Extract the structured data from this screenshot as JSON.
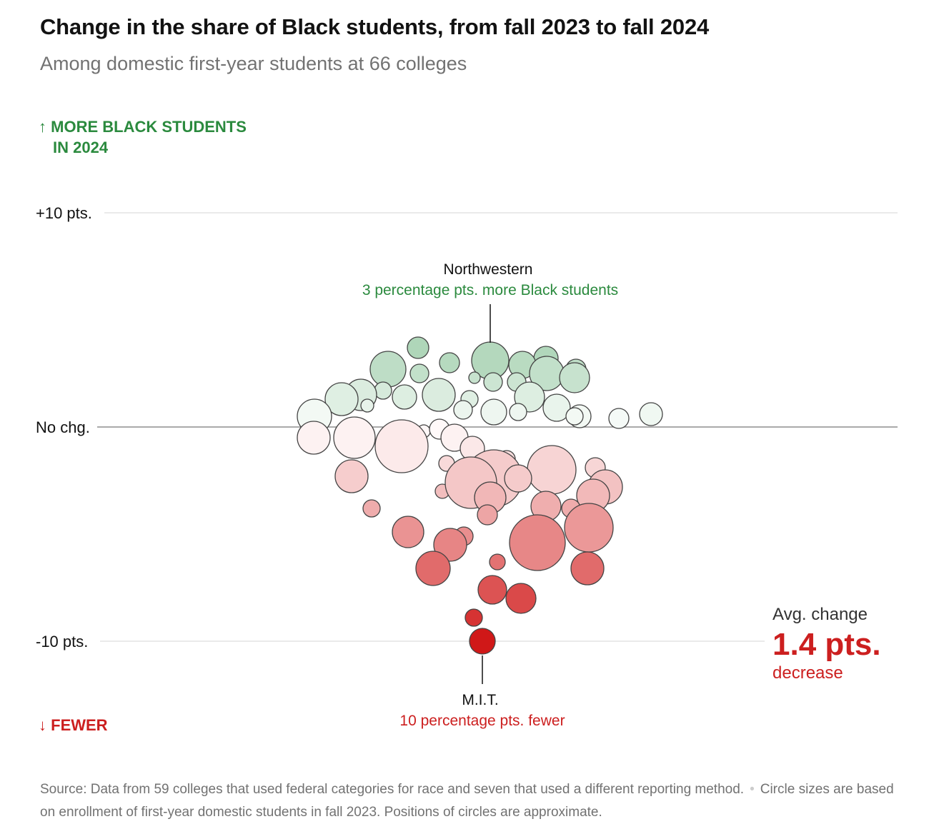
{
  "title": "Change in the share of Black students, from fall 2023 to fall 2024",
  "subtitle": "Among domestic first-year students at 66 colleges",
  "up_arrow": "↑",
  "up_label_line1": "MORE BLACK STUDENTS",
  "up_label_line2": "IN 2024",
  "down_arrow": "↓",
  "down_label": "FEWER",
  "avg": {
    "key": "Avg. change",
    "value": "1.4 pts.",
    "direction": "decrease"
  },
  "source": "Source: Data from 59 colleges that used federal categories for race and seven that used a different reporting method.",
  "note": "Circle sizes are based on enrollment of first-year domestic students in fall 2023. Positions of circles are approximate.",
  "colors": {
    "positive": "#2b8a3e",
    "negative": "#cc1f1f",
    "stroke": "#444444"
  },
  "chart_data": {
    "type": "scatter",
    "y_ticks": [
      {
        "value": 10,
        "label": "+10 pts."
      },
      {
        "value": 0,
        "label": "No chg."
      },
      {
        "value": -10,
        "label": "-10 pts."
      }
    ],
    "ylim": [
      -10,
      10
    ],
    "annotations": [
      {
        "name": "Northwestern",
        "text": "3 percentage pts. more Black students",
        "change": 3
      },
      {
        "name": "M.I.T.",
        "text": "10 percentage pts. fewer",
        "change": -10
      }
    ],
    "points": [
      {
        "change": 3.1,
        "size": 26
      },
      {
        "change": 3.7,
        "size": 15
      },
      {
        "change": 3.2,
        "size": 17
      },
      {
        "change": 3.0,
        "size": 14
      },
      {
        "change": 2.9,
        "size": 19
      },
      {
        "change": 2.7,
        "size": 25
      },
      {
        "change": 2.7,
        "size": 14
      },
      {
        "change": 2.5,
        "size": 13
      },
      {
        "change": 2.5,
        "size": 24
      },
      {
        "change": 2.3,
        "size": 8
      },
      {
        "change": 2.1,
        "size": 13
      },
      {
        "change": 2.1,
        "size": 13
      },
      {
        "change": 2.3,
        "size": 21
      },
      {
        "change": 1.7,
        "size": 12
      },
      {
        "change": 1.5,
        "size": 22
      },
      {
        "change": 1.4,
        "size": 17
      },
      {
        "change": 1.3,
        "size": 12
      },
      {
        "change": 1.5,
        "size": 23
      },
      {
        "change": 1.4,
        "size": 21
      },
      {
        "change": 1.0,
        "size": 9
      },
      {
        "change": 0.9,
        "size": 19
      },
      {
        "change": 0.8,
        "size": 13
      },
      {
        "change": 0.5,
        "size": 16
      },
      {
        "change": 1.3,
        "size": 23
      },
      {
        "change": 0.7,
        "size": 18
      },
      {
        "change": 0.7,
        "size": 12
      },
      {
        "change": 0.4,
        "size": 14
      },
      {
        "change": 0.5,
        "size": 12
      },
      {
        "change": 0.6,
        "size": 16
      },
      {
        "change": 0.5,
        "size": 24
      },
      {
        "change": -0.5,
        "size": 23
      },
      {
        "change": -0.5,
        "size": 29
      },
      {
        "change": -0.5,
        "size": 21
      },
      {
        "change": -0.2,
        "size": 9
      },
      {
        "change": -0.1,
        "size": 14
      },
      {
        "change": -0.9,
        "size": 37
      },
      {
        "change": -0.5,
        "size": 19
      },
      {
        "change": -1.0,
        "size": 17
      },
      {
        "change": -1.5,
        "size": 12
      },
      {
        "change": -1.9,
        "size": 14
      },
      {
        "change": -2.0,
        "size": 34
      },
      {
        "change": -1.7,
        "size": 11
      },
      {
        "change": -2.4,
        "size": 40
      },
      {
        "change": -2.3,
        "size": 23
      },
      {
        "change": -2.4,
        "size": 19
      },
      {
        "change": -2.8,
        "size": 24
      },
      {
        "change": -3.0,
        "size": 10
      },
      {
        "change": -2.6,
        "size": 36
      },
      {
        "change": -3.2,
        "size": 23
      },
      {
        "change": -3.3,
        "size": 22
      },
      {
        "change": -3.7,
        "size": 21
      },
      {
        "change": -3.8,
        "size": 12
      },
      {
        "change": -3.8,
        "size": 13
      },
      {
        "change": -4.1,
        "size": 14
      },
      {
        "change": -4.7,
        "size": 34
      },
      {
        "change": -5.1,
        "size": 13
      },
      {
        "change": -4.9,
        "size": 22
      },
      {
        "change": -5.5,
        "size": 23
      },
      {
        "change": -5.4,
        "size": 39
      },
      {
        "change": -6.3,
        "size": 11
      },
      {
        "change": -6.6,
        "size": 23
      },
      {
        "change": -6.6,
        "size": 24
      },
      {
        "change": -7.6,
        "size": 20
      },
      {
        "change": -8.0,
        "size": 21
      },
      {
        "change": -8.9,
        "size": 12
      },
      {
        "change": -10.0,
        "size": 18
      }
    ]
  }
}
